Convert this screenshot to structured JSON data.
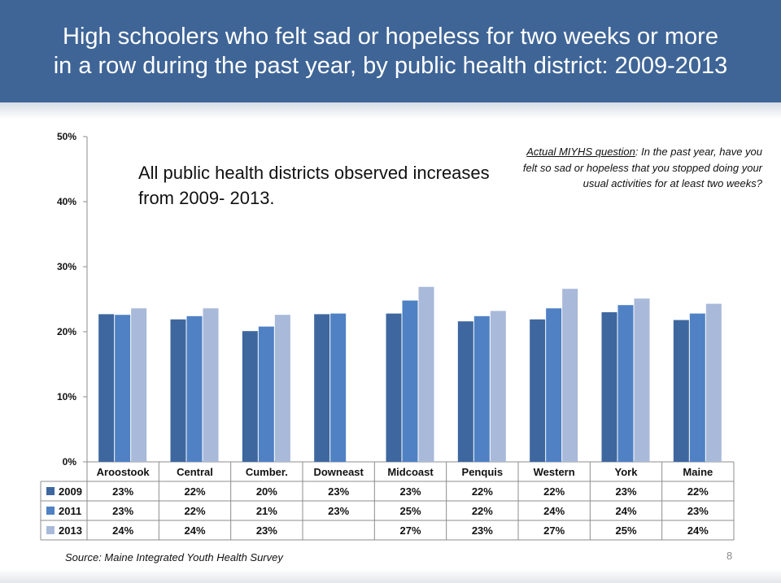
{
  "slide": {
    "title_line1": "High schoolers who felt sad or hopeless for two weeks or more",
    "title_line2": "in a row during the past year, by public health district: 2009-2013",
    "annotation_line1": "All public health districts observed increases",
    "annotation_line2": "from 2009- 2013.",
    "question_label": "Actual MIYHS question",
    "question_text": ": In the past year, have you felt so sad or hopeless that you stopped doing your usual activities for at least two weeks?",
    "source": "Source: Maine Integrated Youth Health Survey",
    "page_number": "8"
  },
  "chart_data": {
    "type": "bar",
    "title": "High schoolers who felt sad or hopeless for two weeks or more in a row during the past year, by public health district: 2009-2013",
    "ylim": [
      0,
      50
    ],
    "yticks": [
      "0%",
      "10%",
      "20%",
      "30%",
      "40%",
      "50%"
    ],
    "grid": false,
    "legend": "bottom-table",
    "categories": [
      "Aroostook",
      "Central",
      "Cumber.",
      "Downeast",
      "Midcoast",
      "Penquis",
      "Western",
      "York",
      "Maine"
    ],
    "series": [
      {
        "name": "2009",
        "color": "#3e679f",
        "values": [
          22.7,
          21.9,
          20.1,
          22.7,
          22.8,
          21.6,
          21.9,
          23.0,
          21.8
        ],
        "labels": [
          "23%",
          "22%",
          "20%",
          "23%",
          "23%",
          "22%",
          "22%",
          "23%",
          "22%"
        ]
      },
      {
        "name": "2011",
        "color": "#4f81c4",
        "values": [
          22.6,
          22.4,
          20.8,
          22.8,
          24.8,
          22.4,
          23.6,
          24.1,
          22.8
        ],
        "labels": [
          "23%",
          "22%",
          "21%",
          "23%",
          "25%",
          "22%",
          "24%",
          "24%",
          "23%"
        ]
      },
      {
        "name": "2013",
        "color": "#a9b9d9",
        "values": [
          23.6,
          23.6,
          22.6,
          null,
          26.9,
          23.2,
          26.6,
          25.1,
          24.3
        ],
        "labels": [
          "24%",
          "24%",
          "23%",
          "",
          "27%",
          "23%",
          "27%",
          "25%",
          "24%"
        ]
      }
    ]
  }
}
